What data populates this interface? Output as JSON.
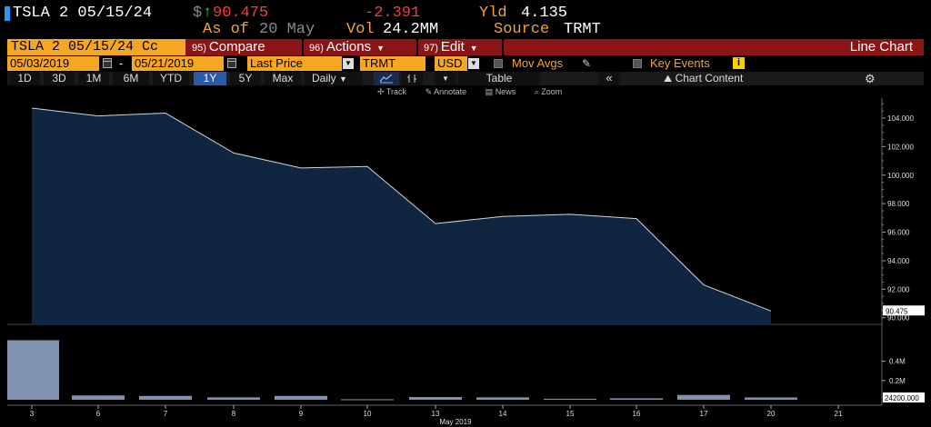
{
  "header": {
    "ticker": "TSLA 2 05/15/24",
    "currency_symbol": "$",
    "last_price": "90.475",
    "change": "-2.391",
    "yield_label": "Yld",
    "yield_value": "4.135",
    "as_of_label": "As of",
    "as_of_date": "20 May",
    "volume_label": "Vol",
    "volume_value": "24.2MM",
    "source_label": "Source",
    "source_value": "TRMT",
    "colors": {
      "price": "#ff3a3a",
      "change": "#ff3a3a",
      "label": "#f5a623",
      "up_arrow": "#2ee04a"
    }
  },
  "command_bar": {
    "security": "TSLA 2 05/15/24 Cc",
    "buttons": [
      {
        "num": "95)",
        "label": "Compare"
      },
      {
        "num": "96)",
        "label": "Actions"
      },
      {
        "num": "97)",
        "label": "Edit"
      }
    ],
    "title": "Line Chart"
  },
  "params": {
    "start_date": "05/03/2019",
    "date_separator": "-",
    "end_date": "05/21/2019",
    "field": "Last Price",
    "source": "TRMT",
    "currency": "USD",
    "mov_avgs": "Mov Avgs",
    "key_events": "Key Events"
  },
  "periods": {
    "items": [
      "1D",
      "3D",
      "1M",
      "6M",
      "YTD",
      "1Y",
      "5Y",
      "Max"
    ],
    "active": "1Y",
    "frequency": "Daily",
    "table_label": "Table",
    "chart_content_label": "Chart Content"
  },
  "tools": {
    "track": "Track",
    "annotate": "Annotate",
    "news": "News",
    "zoom": "Zoom"
  },
  "chart_data": {
    "type": "area",
    "x_labels": [
      "3",
      "6",
      "7",
      "8",
      "9",
      "10",
      "13",
      "14",
      "15",
      "16",
      "17",
      "20",
      "21"
    ],
    "x_month_label": "May 2019",
    "price_series": {
      "values": [
        104.7,
        104.15,
        104.35,
        101.55,
        100.5,
        100.6,
        96.6,
        97.1,
        97.25,
        96.95,
        92.3,
        90.475
      ]
    },
    "last_value_label": "90.475",
    "y_ticks": [
      "104.000",
      "102.000",
      "100.000",
      "98.000",
      "96.000",
      "94.000",
      "92.000",
      "90.000"
    ],
    "ylim": [
      89.6,
      105.4
    ],
    "volume_series": {
      "values": [
        0.62,
        0.045,
        0.04,
        0.025,
        0.04,
        0.005,
        0.028,
        0.025,
        0.01,
        0.015,
        0.05,
        0.024
      ]
    },
    "volume_ticks": [
      "0.4M",
      "0.2M"
    ],
    "volume_ylim": [
      0,
      0.7
    ],
    "last_volume_label": "24200.000",
    "colors": {
      "area_fill": "#0f2540",
      "line": "#d0d6de",
      "volume_bar": "#7f93b0",
      "last_label_bg": "#ffffff"
    }
  }
}
